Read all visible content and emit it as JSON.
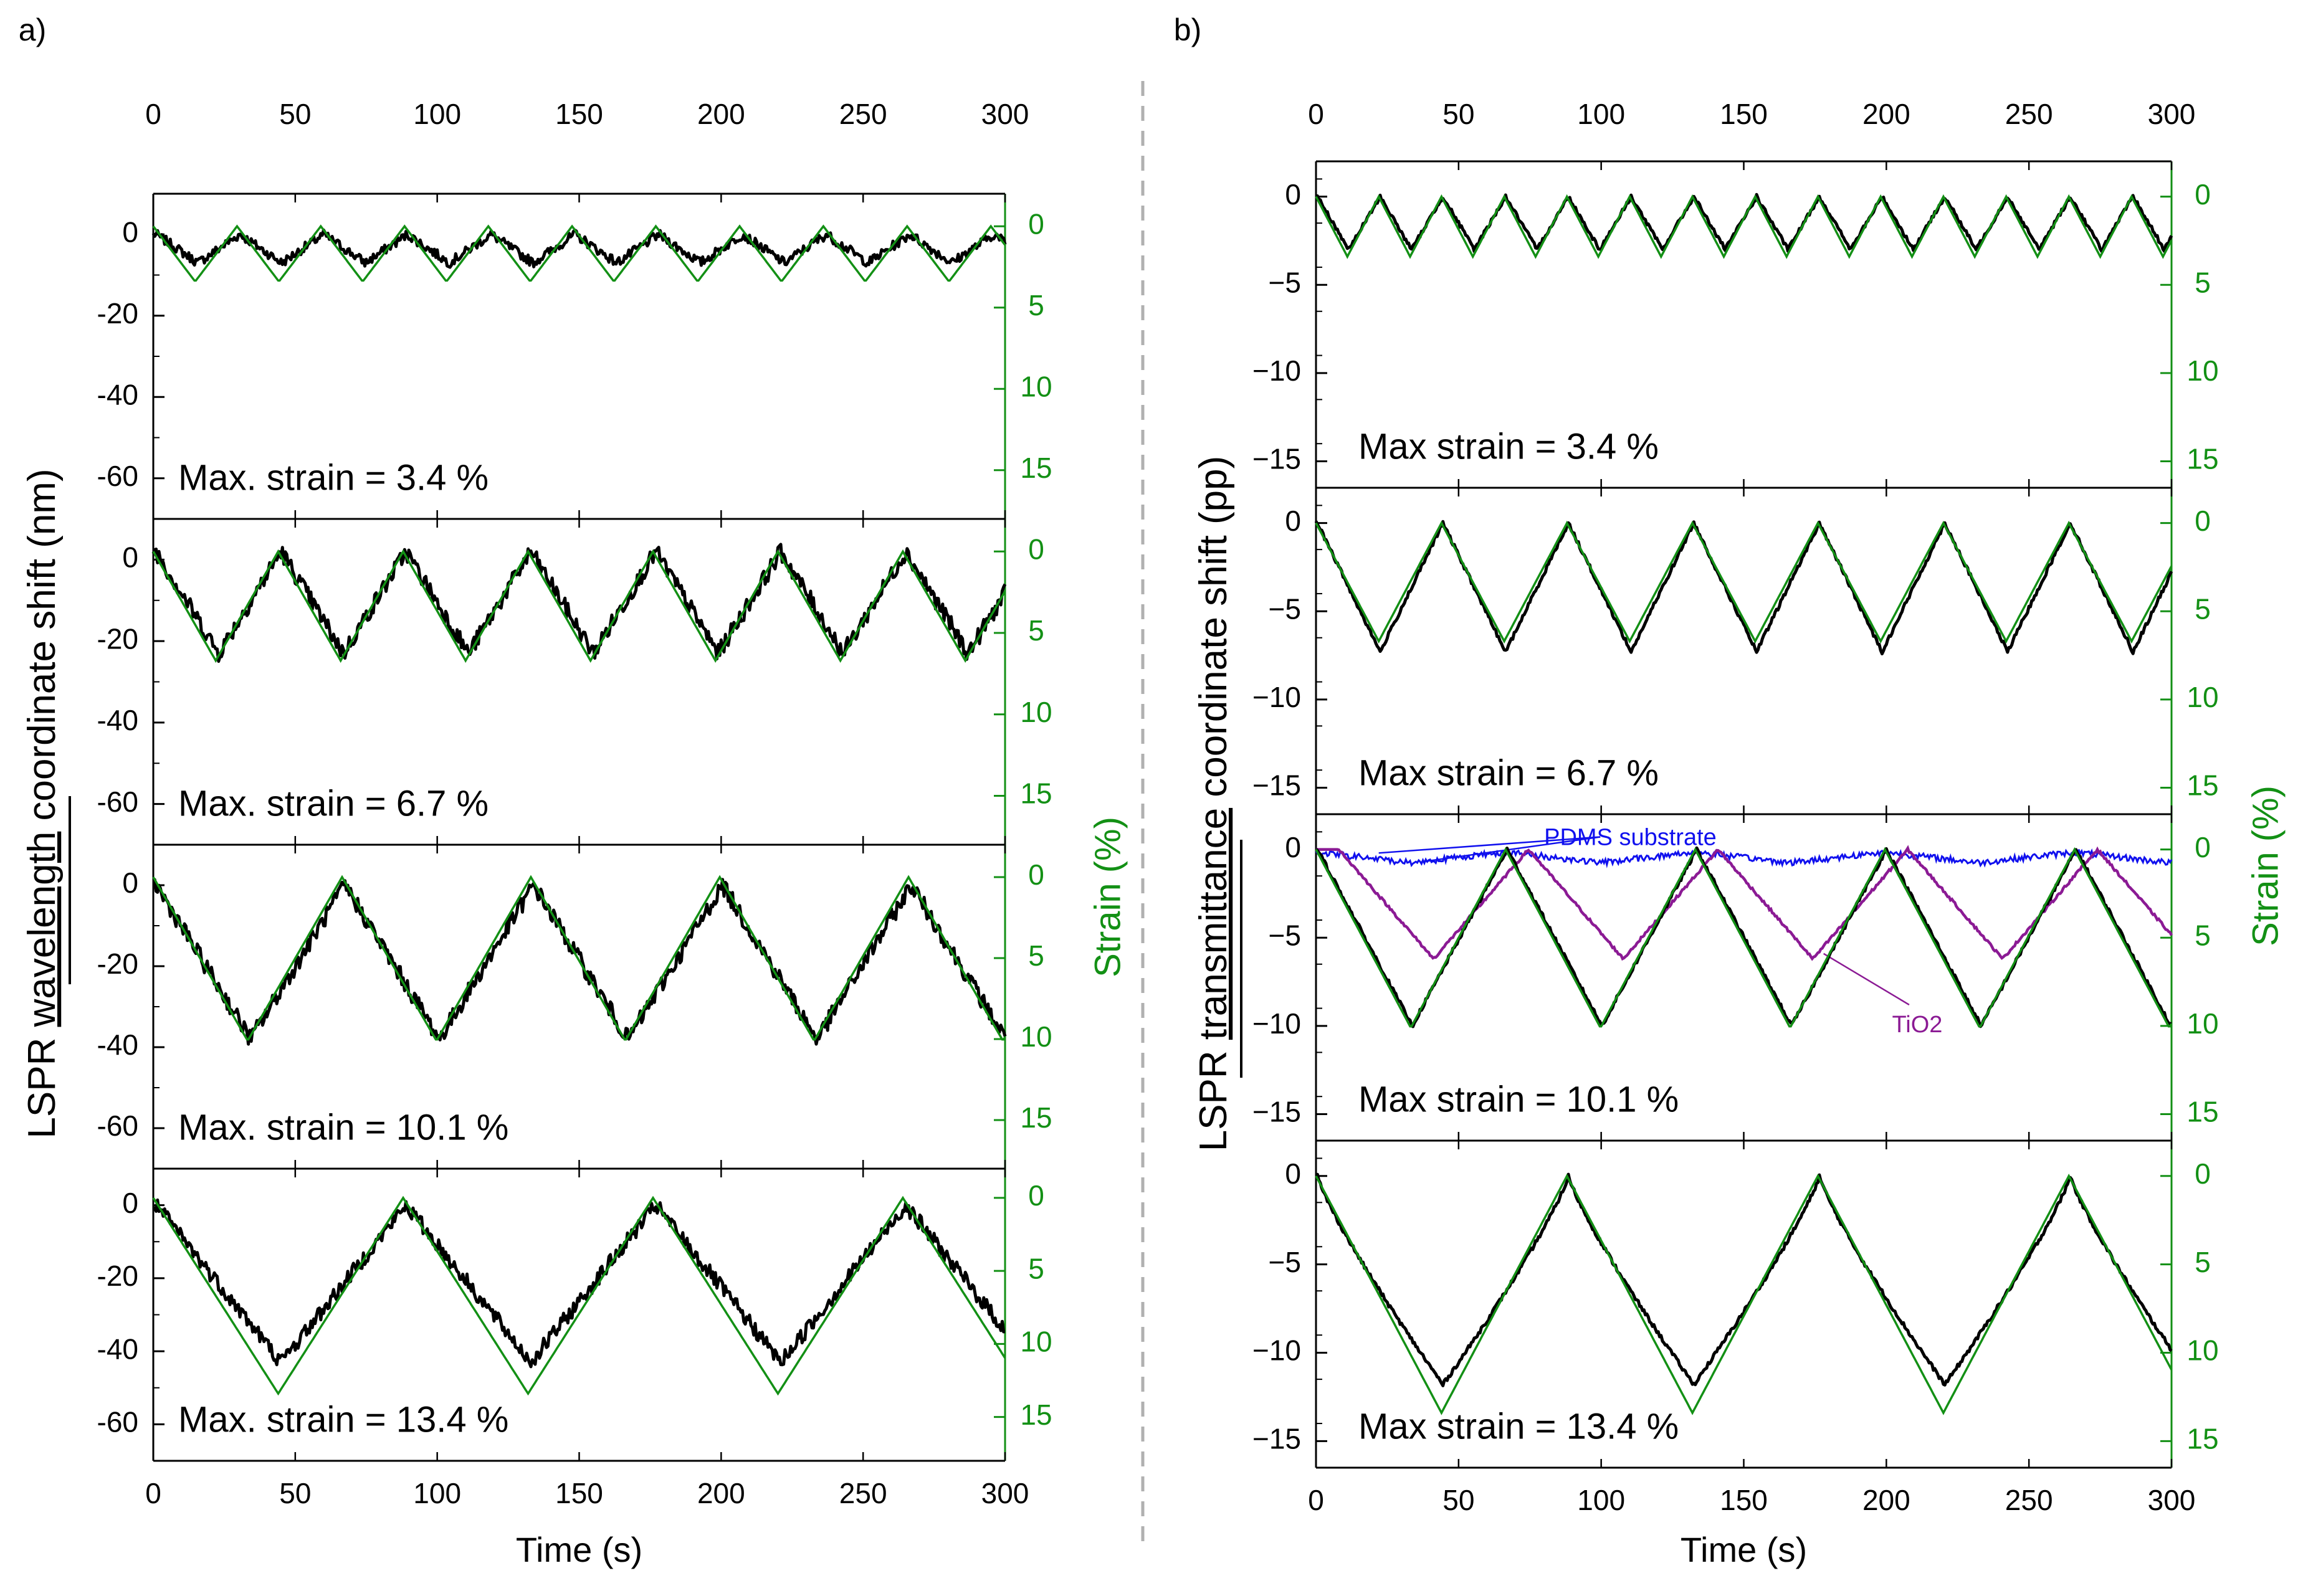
{
  "colors": {
    "measured": "#000000",
    "strain": "#139015",
    "pdms": "#1010ee",
    "tio2": "#8b1a94",
    "divider": "#b0b0b0"
  },
  "panels": [
    {
      "letter": "a)",
      "ylabel_parts": [
        "LSPR ",
        "wavelength",
        " coordinate shift (nm)"
      ],
      "xlabel": "Time (s)",
      "right_label": "Strain (%)",
      "strain_label_prefix": "Max. strain = "
    },
    {
      "letter": "b)",
      "ylabel_parts": [
        "LSPR ",
        "transmittance",
        " coordinate shift (pp)"
      ],
      "xlabel": "Time (s)",
      "right_label": "Strain (%)",
      "strain_label_prefix": "Max strain = "
    }
  ],
  "chart_data": [
    {
      "type": "line",
      "panel": "a",
      "xlim": [
        0,
        300
      ],
      "ylim": [
        -70,
        10
      ],
      "right_ylim": [
        18,
        -2
      ],
      "x_ticks": [
        0,
        50,
        100,
        150,
        200,
        250,
        300
      ],
      "y_ticks": [
        0,
        -20,
        -40,
        -60
      ],
      "right_ticks": [
        0,
        5,
        10,
        15
      ],
      "subplots": [
        {
          "max_strain": 3.4,
          "label": "Max. strain = 3.4 %",
          "period": 29.5,
          "min_shift": -7,
          "strain_curve": "triangle 0 → 3.4 %"
        },
        {
          "max_strain": 6.7,
          "label": "Max. strain = 6.7 %",
          "period": 44,
          "min_shift": -25,
          "strain_curve": "triangle 0 → 6.7 %"
        },
        {
          "max_strain": 10.1,
          "label": "Max. strain = 10.1 %",
          "period": 66.5,
          "min_shift": -38,
          "strain_curve": "triangle 0 → 10.1 %"
        },
        {
          "max_strain": 13.4,
          "label": "Max. strain = 13.4 %",
          "period": 88,
          "min_shift": -43,
          "strain_curve": "triangle 0 → 13.4 %"
        }
      ]
    },
    {
      "type": "line",
      "panel": "b",
      "xlim": [
        0,
        300
      ],
      "ylim": [
        -16.5,
        2
      ],
      "right_ylim": [
        16.5,
        -2
      ],
      "x_ticks": [
        0,
        50,
        100,
        150,
        200,
        250,
        300
      ],
      "y_ticks": [
        0,
        -5,
        -10,
        -15
      ],
      "right_ticks": [
        0,
        5,
        10,
        15
      ],
      "subplots": [
        {
          "max_strain": 3.4,
          "label": "Max strain = 3.4 %",
          "period": 22,
          "min_shift": -3,
          "strain_curve": "triangle 0 → 3.4 %"
        },
        {
          "max_strain": 6.7,
          "label": "Max strain = 6.7 %",
          "period": 44,
          "min_shift": -7.3,
          "strain_curve": "triangle 0 → 6.7 %"
        },
        {
          "max_strain": 10.1,
          "label": "Max strain = 10.1 %",
          "period": 66.5,
          "min_shift": -10,
          "strain_curve": "triangle 0 → 10.1 %",
          "extra_series": [
            {
              "name": "PDMS substrate",
              "min_shift": -0.8
            },
            {
              "name": "TiO2",
              "min_shift": -6.2
            }
          ]
        },
        {
          "max_strain": 13.4,
          "label": "Max strain = 13.4 %",
          "period": 88,
          "min_shift": -11.8,
          "strain_curve": "triangle 0 → 13.4 %"
        }
      ]
    }
  ]
}
